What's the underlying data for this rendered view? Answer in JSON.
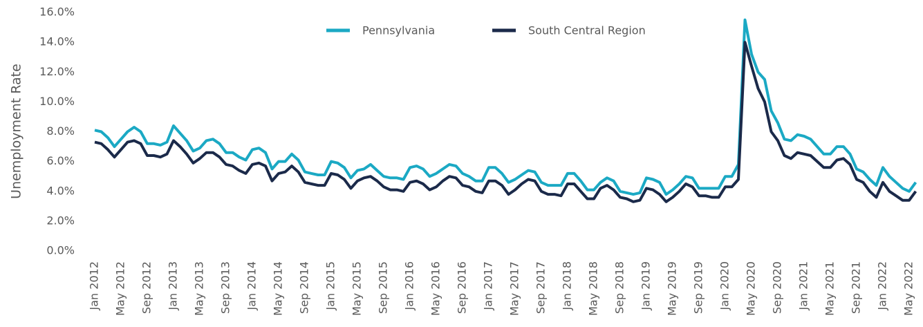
{
  "chart_data": {
    "type": "line",
    "y_axis_label": "Unemployment Rate",
    "categories": [
      "Jan 2012",
      null,
      null,
      null,
      "May 2012",
      null,
      null,
      null,
      "Sep 2012",
      null,
      null,
      null,
      "Jan 2013",
      null,
      null,
      null,
      "May 2013",
      null,
      null,
      null,
      "Sep 2013",
      null,
      null,
      null,
      "Jan 2014",
      null,
      null,
      null,
      "May 2014",
      null,
      null,
      null,
      "Sep 2014",
      null,
      null,
      null,
      "Jan 2015",
      null,
      null,
      null,
      "May 2015",
      null,
      null,
      null,
      "Sep 2015",
      null,
      null,
      null,
      "Jan 2016",
      null,
      null,
      null,
      "May 2016",
      null,
      null,
      null,
      "Sep 2016",
      null,
      null,
      null,
      "Jan 2017",
      null,
      null,
      null,
      "May 2017",
      null,
      null,
      null,
      "Sep 2017",
      null,
      null,
      null,
      "Jan 2018",
      null,
      null,
      null,
      "May 2018",
      null,
      null,
      null,
      "Sep 2018",
      null,
      null,
      null,
      "Jan 2019",
      null,
      null,
      null,
      "May 2019",
      null,
      null,
      null,
      "Sep 2019",
      null,
      null,
      null,
      "Jan 2020",
      null,
      null,
      null,
      "May 2020",
      null,
      null,
      null,
      "Sep 2020",
      null,
      null,
      null,
      "Jan 2021",
      null,
      null,
      null,
      "May 2021",
      null,
      null,
      null,
      "Sep 2021",
      null,
      null,
      null,
      "Jan 2022",
      null,
      null,
      null,
      "May 2022",
      null
    ],
    "series": [
      {
        "name": "Pennsylvania",
        "color": "#1ba9c4",
        "values": [
          8.1,
          8.0,
          7.6,
          7.0,
          7.5,
          8.0,
          8.3,
          8.0,
          7.2,
          7.2,
          7.1,
          7.3,
          8.4,
          7.9,
          7.4,
          6.7,
          6.9,
          7.4,
          7.5,
          7.2,
          6.6,
          6.6,
          6.3,
          6.1,
          6.8,
          6.9,
          6.6,
          5.5,
          6.0,
          6.0,
          6.5,
          6.1,
          5.3,
          5.2,
          5.1,
          5.1,
          6.0,
          5.9,
          5.6,
          4.9,
          5.4,
          5.5,
          5.8,
          5.4,
          5.0,
          4.9,
          4.9,
          4.8,
          5.6,
          5.7,
          5.5,
          5.0,
          5.2,
          5.5,
          5.8,
          5.7,
          5.2,
          5.0,
          4.7,
          4.7,
          5.6,
          5.6,
          5.2,
          4.6,
          4.8,
          5.1,
          5.4,
          5.3,
          4.6,
          4.4,
          4.4,
          4.4,
          5.2,
          5.2,
          4.7,
          4.1,
          4.1,
          4.6,
          4.9,
          4.7,
          4.0,
          3.9,
          3.8,
          3.9,
          4.9,
          4.8,
          4.6,
          3.8,
          4.1,
          4.5,
          5.0,
          4.9,
          4.2,
          4.2,
          4.2,
          4.2,
          5.0,
          5.0,
          5.8,
          15.5,
          13.2,
          12.0,
          11.5,
          9.4,
          8.6,
          7.5,
          7.4,
          7.8,
          7.7,
          7.5,
          7.0,
          6.5,
          6.5,
          7.0,
          7.0,
          6.5,
          5.5,
          5.3,
          4.8,
          4.4,
          5.6,
          5.0,
          4.6,
          4.2,
          4.0,
          4.6
        ]
      },
      {
        "name": "South Central Region",
        "color": "#1b2a4a",
        "values": [
          7.3,
          7.2,
          6.8,
          6.3,
          6.8,
          7.3,
          7.4,
          7.2,
          6.4,
          6.4,
          6.3,
          6.5,
          7.4,
          7.0,
          6.5,
          5.9,
          6.2,
          6.6,
          6.6,
          6.3,
          5.8,
          5.7,
          5.4,
          5.2,
          5.8,
          5.9,
          5.7,
          4.7,
          5.2,
          5.3,
          5.7,
          5.3,
          4.6,
          4.5,
          4.4,
          4.4,
          5.2,
          5.1,
          4.8,
          4.2,
          4.7,
          4.9,
          5.0,
          4.7,
          4.3,
          4.1,
          4.1,
          4.0,
          4.6,
          4.7,
          4.5,
          4.1,
          4.3,
          4.7,
          5.0,
          4.9,
          4.4,
          4.3,
          4.0,
          3.9,
          4.7,
          4.7,
          4.4,
          3.8,
          4.1,
          4.5,
          4.8,
          4.7,
          4.0,
          3.8,
          3.8,
          3.7,
          4.5,
          4.5,
          4.0,
          3.5,
          3.5,
          4.2,
          4.4,
          4.1,
          3.6,
          3.5,
          3.3,
          3.4,
          4.2,
          4.1,
          3.8,
          3.3,
          3.6,
          4.0,
          4.5,
          4.3,
          3.7,
          3.7,
          3.6,
          3.6,
          4.3,
          4.3,
          4.8,
          14.0,
          12.4,
          10.9,
          10.0,
          8.0,
          7.4,
          6.4,
          6.2,
          6.6,
          6.5,
          6.4,
          6.0,
          5.6,
          5.6,
          6.1,
          6.2,
          5.8,
          4.8,
          4.6,
          4.0,
          3.6,
          4.6,
          4.0,
          3.7,
          3.4,
          3.4,
          4.0
        ]
      }
    ],
    "ylim": [
      0,
      16
    ],
    "yticks": [
      {
        "value": 0,
        "label": "0.0%"
      },
      {
        "value": 2,
        "label": "2.0%"
      },
      {
        "value": 4,
        "label": "4.0%"
      },
      {
        "value": 6,
        "label": "6.0%"
      },
      {
        "value": 8,
        "label": "8.0%"
      },
      {
        "value": 10,
        "label": "10.0%"
      },
      {
        "value": 12,
        "label": "12.0%"
      },
      {
        "value": 14,
        "label": "14.0%"
      },
      {
        "value": 16,
        "label": "16.0%"
      }
    ],
    "grid": false,
    "legend": "top"
  }
}
